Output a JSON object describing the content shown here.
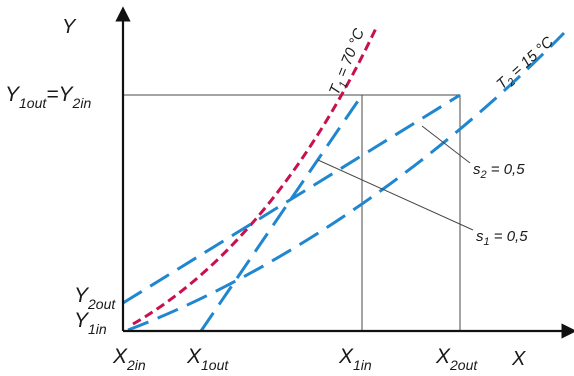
{
  "axis": {
    "y_label": "Y",
    "x_label": "X"
  },
  "y_ticks": {
    "y1out_y2in": {
      "p1": "Y",
      "s1": "1out",
      "mid": "=Y",
      "s2": "2in"
    },
    "y2out": {
      "p": "Y",
      "s": "2out"
    },
    "y1in": {
      "p": "Y",
      "s": "1in"
    }
  },
  "x_ticks": [
    {
      "p": "X",
      "s": "2in"
    },
    {
      "p": "X",
      "s": "1out"
    },
    {
      "p": "X",
      "s": "1in"
    },
    {
      "p": "X",
      "s": "2out"
    }
  ],
  "curves": {
    "t1": {
      "p": "T",
      "s": "1",
      "rest": " = 70 °C"
    },
    "t2": {
      "p": "T",
      "s": "2",
      "rest": " = 15 °C"
    }
  },
  "annotations": {
    "s2": {
      "p": "s",
      "s": "2",
      "rest": " = 0,5"
    },
    "s1": {
      "p": "s",
      "s": "1",
      "rest": " = 0,5"
    }
  },
  "colors": {
    "t1_curve": "#c8104f",
    "t2_curve": "#1f86d0",
    "operating_lines": "#1f86d0",
    "axes": "#111111"
  }
}
